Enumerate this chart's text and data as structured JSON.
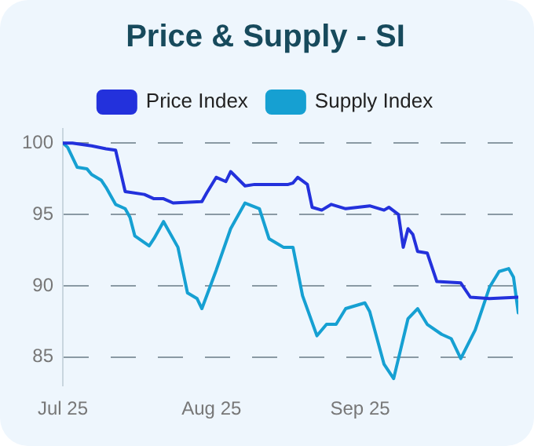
{
  "chart_data": {
    "type": "line",
    "title": "Price & Supply - SI",
    "legend": "top",
    "grid": "y",
    "marker": "none",
    "line_style": "solid",
    "xlim": [
      "--07-25",
      "--10-28"
    ],
    "xticks": [
      {
        "value": "--07-25",
        "label": "Jul 25"
      },
      {
        "value": "--08-25",
        "label": "Aug 25"
      },
      {
        "value": "--09-25",
        "label": "Sep 25"
      }
    ],
    "ylim": [
      83,
      101
    ],
    "yticks": [
      85,
      90,
      95,
      100
    ],
    "series": [
      {
        "name": "Price Index",
        "color": "#2331dc",
        "x": [
          "--07-25",
          "--07-27",
          "--07-31",
          "--08-03",
          "--08-05",
          "--08-07",
          "--08-11",
          "--08-13",
          "--08-15",
          "--08-17",
          "--08-23",
          "--08-24",
          "--08-26",
          "--08-28",
          "--08-29",
          "--09-01",
          "--09-03",
          "--09-10",
          "--09-11",
          "--09-12",
          "--09-14",
          "--09-15",
          "--09-17",
          "--09-19",
          "--09-22",
          "--09-27",
          "--09-30",
          "--10-01",
          "--10-03",
          "--10-04",
          "--10-05",
          "--10-06",
          "--10-07",
          "--10-09",
          "--10-11",
          "--10-16",
          "--10-18",
          "--10-22",
          "--10-28"
        ],
        "values": [
          100,
          100,
          99.8,
          99.6,
          99.5,
          96.6,
          96.4,
          96.1,
          96.1,
          95.8,
          95.9,
          96.5,
          97.6,
          97.3,
          98,
          97,
          97.1,
          97.1,
          97.2,
          97.6,
          97.1,
          95.5,
          95.3,
          95.7,
          95.4,
          95.6,
          95.3,
          95.5,
          95,
          92.7,
          94,
          93.6,
          92.4,
          92.3,
          90.3,
          90.2,
          89.2,
          89.1,
          89.2
        ]
      },
      {
        "name": "Supply Index",
        "color": "#16a0d2",
        "x": [
          "--07-25",
          "--07-26",
          "--07-28",
          "--07-30",
          "--07-31",
          "--08-02",
          "--08-03",
          "--08-05",
          "--08-07",
          "--08-08",
          "--08-09",
          "--08-12",
          "--08-13",
          "--08-15",
          "--08-18",
          "--08-20",
          "--08-22",
          "--08-23",
          "--08-26",
          "--08-29",
          "--08-30",
          "--09-01",
          "--09-04",
          "--09-06",
          "--09-08",
          "--09-09",
          "--09-11",
          "--09-13",
          "--09-16",
          "--09-18",
          "--09-20",
          "--09-22",
          "--09-26",
          "--09-27",
          "--09-30",
          "--10-02",
          "--10-05",
          "--10-07",
          "--10-09",
          "--10-12",
          "--10-14",
          "--10-16",
          "--10-19",
          "--10-22",
          "--10-24",
          "--10-26",
          "--10-27",
          "--10-28"
        ],
        "values": [
          100,
          99.7,
          98.3,
          98.2,
          97.8,
          97.4,
          96.9,
          95.7,
          95.4,
          94.8,
          93.5,
          92.8,
          93.3,
          94.5,
          92.7,
          89.5,
          89.1,
          88.4,
          91.1,
          94,
          94.6,
          95.8,
          95.4,
          93.3,
          92.9,
          92.7,
          92.7,
          89.3,
          86.5,
          87.3,
          87.3,
          88.4,
          88.8,
          88.2,
          84.5,
          83.5,
          87.7,
          88.4,
          87.3,
          86.6,
          86.3,
          84.9,
          86.9,
          89.9,
          91,
          91.2,
          90.6,
          88.1
        ]
      }
    ]
  }
}
